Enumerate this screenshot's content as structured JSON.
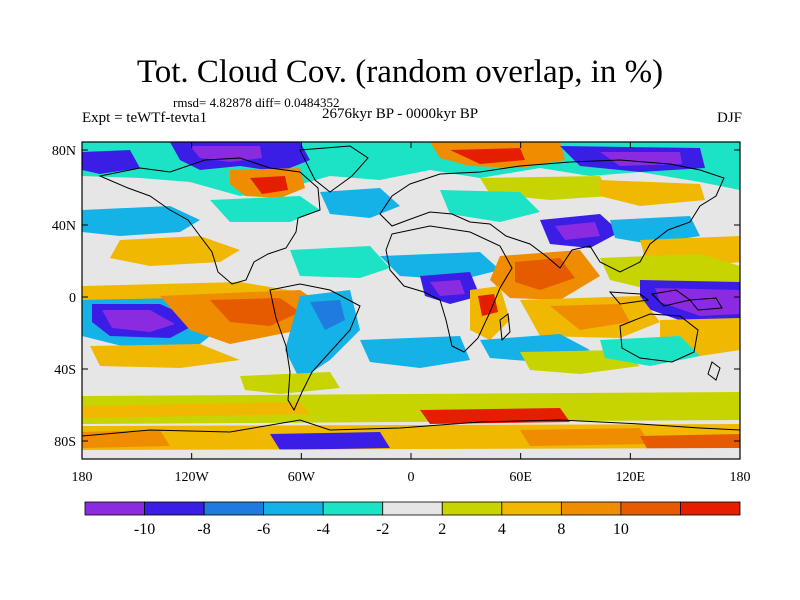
{
  "title": "Tot. Cloud Cov. (random overlap, in %)",
  "stats": "rmsd= 4.82878 diff= 0.0484352",
  "experiment": "Expt = teWTf-tevta1",
  "period": "2676kyr BP - 0000kyr BP",
  "season": "DJF",
  "axes": {
    "lat_ticks": [
      "80N",
      "40N",
      "0",
      "40S",
      "80S"
    ],
    "lon_ticks": [
      "180",
      "120W",
      "60W",
      "0",
      "60E",
      "120E",
      "180"
    ]
  },
  "legend": {
    "labels": [
      "-10",
      "-8",
      "-6",
      "-4",
      "-2",
      "2",
      "4",
      "8",
      "10"
    ],
    "colors": [
      "#8a2be2",
      "#3a1ee6",
      "#1f7be0",
      "#14b2e6",
      "#1de3c6",
      "#e6e6e6",
      "#c8d400",
      "#f0b800",
      "#f08c00",
      "#e65a00",
      "#e61e00"
    ]
  },
  "map_colors": {
    "background": "#e6e6e6",
    "coast": "#000000"
  }
}
